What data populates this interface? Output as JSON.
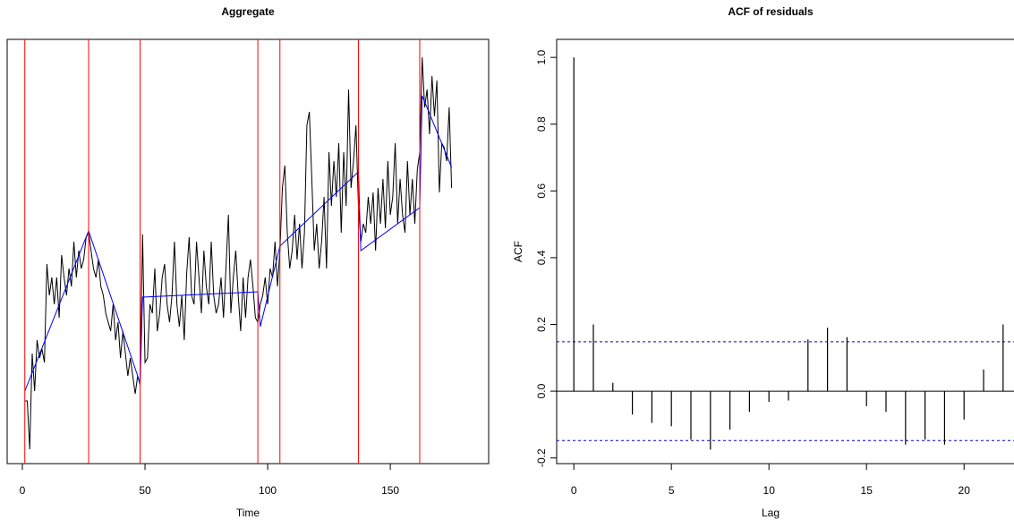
{
  "chart_data": [
    {
      "type": "line",
      "title": "Aggregate",
      "xlabel": "Time",
      "xlim": [
        -6.2,
        190.1
      ],
      "xticks": [
        0,
        50,
        100,
        150
      ],
      "ylim": [
        0,
        474
      ],
      "vlines": [
        1,
        27,
        48,
        96,
        105,
        137,
        162
      ],
      "vline_color": "#ff0000",
      "x": [
        1,
        2,
        3,
        4,
        5,
        6,
        7,
        8,
        9,
        10,
        11,
        12,
        13,
        14,
        15,
        16,
        17,
        18,
        19,
        20,
        21,
        22,
        23,
        24,
        25,
        26,
        27,
        28,
        29,
        30,
        31,
        32,
        33,
        34,
        35,
        36,
        37,
        38,
        39,
        40,
        41,
        42,
        43,
        44,
        45,
        46,
        47,
        48,
        49,
        50,
        51,
        52,
        53,
        54,
        55,
        56,
        57,
        58,
        59,
        60,
        61,
        62,
        63,
        64,
        65,
        66,
        67,
        68,
        69,
        70,
        71,
        72,
        73,
        74,
        75,
        76,
        77,
        78,
        79,
        80,
        81,
        82,
        83,
        84,
        85,
        86,
        87,
        88,
        89,
        90,
        91,
        92,
        93,
        94,
        95,
        96,
        97,
        98,
        99,
        100,
        101,
        102,
        103,
        104,
        105,
        106,
        107,
        108,
        109,
        110,
        111,
        112,
        113,
        114,
        115,
        116,
        117,
        118,
        119,
        120,
        121,
        122,
        123,
        124,
        125,
        126,
        127,
        128,
        129,
        130,
        131,
        132,
        133,
        134,
        135,
        136,
        137,
        138,
        139,
        140,
        141,
        142,
        143,
        144,
        145,
        146,
        147,
        148,
        149,
        150,
        151,
        152,
        153,
        154,
        155,
        156,
        157,
        158,
        159,
        160,
        161,
        162,
        163,
        164,
        165,
        166,
        167,
        168,
        169,
        170,
        171,
        172,
        173,
        174,
        175
      ],
      "series": [
        {
          "color": "#000000",
          "values": [
            70,
            70,
            16,
            123,
            81,
            138,
            118,
            128,
            113,
            223,
            188,
            208,
            178,
            208,
            163,
            233,
            208,
            188,
            218,
            198,
            248,
            208,
            238,
            218,
            228,
            253,
            258,
            238,
            218,
            208,
            228,
            198,
            188,
            168,
            158,
            148,
            178,
            138,
            158,
            118,
            148,
            123,
            98,
            118,
            98,
            78,
            98,
            88,
            256,
            113,
            118,
            178,
            168,
            218,
            148,
            168,
            208,
            223,
            178,
            158,
            188,
            248,
            178,
            153,
            188,
            138,
            213,
            253,
            188,
            178,
            248,
            208,
            168,
            238,
            198,
            178,
            248,
            188,
            168,
            178,
            208,
            163,
            218,
            278,
            168,
            208,
            238,
            188,
            148,
            208,
            163,
            208,
            228,
            198,
            163,
            158,
            178,
            188,
            208,
            178,
            218,
            208,
            248,
            198,
            238,
            308,
            333,
            258,
            218,
            238,
            278,
            228,
            268,
            218,
            258,
            378,
            393,
            318,
            238,
            268,
            218,
            248,
            298,
            218,
            348,
            288,
            338,
            298,
            358,
            258,
            348,
            288,
            418,
            308,
            338,
            378,
            288,
            248,
            268,
            258,
            298,
            268,
            303,
            238,
            308,
            268,
            318,
            263,
            338,
            278,
            298,
            358,
            268,
            318,
            278,
            258,
            338,
            278,
            318,
            268,
            328,
            348,
            454,
            398,
            418,
            368,
            433,
            388,
            428,
            303,
            358,
            353,
            338,
            398,
            308
          ]
        },
        {
          "color": "#0000ff",
          "x": [
            1,
            27,
            48,
            49,
            96,
            97,
            105,
            137,
            138,
            162,
            163,
            175
          ],
          "values": [
            81,
            260,
            90,
            186,
            192,
            153,
            243,
            326,
            238,
            286,
            411,
            331
          ]
        }
      ]
    },
    {
      "type": "acf",
      "title": "ACF of residuals",
      "xlabel": "Lag",
      "ylabel": "ACF",
      "xlim": [
        -0.88,
        22.88
      ],
      "xticks": [
        0,
        5,
        10,
        15,
        20
      ],
      "ylim": [
        -0.217,
        1.054
      ],
      "yticks": [
        -0.2,
        {
          "value": 0,
          "label": "0.0"
        },
        0.2,
        0.4,
        0.6,
        0.8,
        {
          "value": 1,
          "label": "1.0"
        }
      ],
      "ci": [
        -0.148,
        0.148
      ],
      "ci_color": "#0000cc",
      "color": "#000000",
      "x": [
        0,
        1,
        2,
        3,
        4,
        5,
        6,
        7,
        8,
        9,
        10,
        11,
        12,
        13,
        14,
        15,
        16,
        17,
        18,
        19,
        20,
        21,
        22
      ],
      "values": [
        1.0,
        0.2,
        0.025,
        -0.07,
        -0.095,
        -0.105,
        -0.145,
        -0.175,
        -0.115,
        -0.062,
        -0.032,
        -0.028,
        0.155,
        0.19,
        0.162,
        -0.045,
        -0.062,
        -0.16,
        -0.145,
        -0.16,
        -0.085,
        0.065,
        0.2
      ]
    }
  ]
}
